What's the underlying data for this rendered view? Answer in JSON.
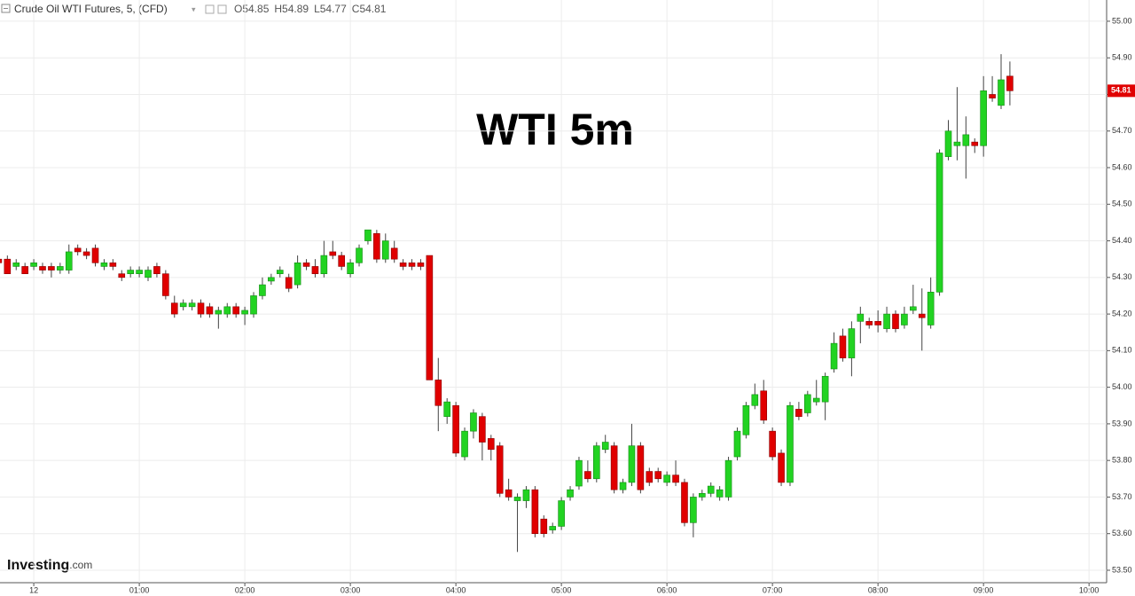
{
  "chart_data": {
    "type": "candlestick",
    "instrument": "Crude Oil WTI Futures, 5, (CFD)",
    "ohlc_labels": [
      "O54.85",
      "H54.89",
      "L54.77",
      "C54.81"
    ],
    "annotation": "WTI 5m",
    "watermark": [
      "Investing",
      ".com"
    ],
    "up_color": "#22d322",
    "down_color": "#e00000",
    "grid": true,
    "last_price": {
      "value": 54.81,
      "label": "54.81"
    },
    "xlim": [
      -19.2,
      610
    ],
    "xticks": [
      {
        "value": 0,
        "label": "12"
      },
      {
        "value": 60,
        "label": "01:00"
      },
      {
        "value": 120,
        "label": "02:00"
      },
      {
        "value": 180,
        "label": "03:00"
      },
      {
        "value": 240,
        "label": "04:00"
      },
      {
        "value": 300,
        "label": "05:00"
      },
      {
        "value": 360,
        "label": "06:00"
      },
      {
        "value": 420,
        "label": "07:00"
      },
      {
        "value": 480,
        "label": "08:00"
      },
      {
        "value": 540,
        "label": "09:00"
      },
      {
        "value": 600,
        "label": "10:00"
      }
    ],
    "ylim": [
      53.466,
      55.058
    ],
    "yticks": [
      {
        "value": 53.5,
        "label": "53.50"
      },
      {
        "value": 53.6,
        "label": "53.60"
      },
      {
        "value": 53.7,
        "label": "53.70"
      },
      {
        "value": 53.8,
        "label": "53.80"
      },
      {
        "value": 53.9,
        "label": "53.90"
      },
      {
        "value": 54.0,
        "label": "54.00"
      },
      {
        "value": 54.1,
        "label": "54.10"
      },
      {
        "value": 54.2,
        "label": "54.20"
      },
      {
        "value": 54.3,
        "label": "54.30"
      },
      {
        "value": 54.4,
        "label": "54.40"
      },
      {
        "value": 54.5,
        "label": "54.50"
      },
      {
        "value": 54.6,
        "label": "54.60"
      },
      {
        "value": 54.7,
        "label": "54.70"
      },
      {
        "value": 54.8,
        "label": "54.80"
      },
      {
        "value": 54.9,
        "label": "54.90"
      },
      {
        "value": 55.0,
        "label": "55.00"
      }
    ],
    "x": [
      -20,
      -15,
      -10,
      -5,
      0,
      5,
      10,
      15,
      20,
      25,
      30,
      35,
      40,
      45,
      50,
      55,
      60,
      65,
      70,
      75,
      80,
      85,
      90,
      95,
      100,
      105,
      110,
      115,
      120,
      125,
      130,
      135,
      140,
      145,
      150,
      155,
      160,
      165,
      170,
      175,
      180,
      185,
      190,
      195,
      200,
      205,
      210,
      215,
      220,
      225,
      230,
      235,
      240,
      245,
      250,
      255,
      260,
      265,
      270,
      275,
      280,
      285,
      290,
      295,
      300,
      305,
      310,
      315,
      320,
      325,
      330,
      335,
      340,
      345,
      350,
      355,
      360,
      365,
      370,
      375,
      380,
      385,
      390,
      395,
      400,
      405,
      410,
      415,
      420,
      425,
      430,
      435,
      440,
      445,
      450,
      455,
      460,
      465,
      470,
      475,
      480,
      485,
      490,
      495,
      500,
      505,
      510,
      515,
      520,
      525,
      530,
      535,
      540,
      545,
      550,
      555
    ],
    "open": [
      54.35,
      54.35,
      54.33,
      54.33,
      54.33,
      54.33,
      54.33,
      54.32,
      54.32,
      54.38,
      54.37,
      54.38,
      54.33,
      54.34,
      54.31,
      54.31,
      54.31,
      54.3,
      54.33,
      54.31,
      54.23,
      54.22,
      54.22,
      54.23,
      54.22,
      54.2,
      54.2,
      54.22,
      54.2,
      54.2,
      54.25,
      54.29,
      54.31,
      54.3,
      54.28,
      54.34,
      54.33,
      54.31,
      54.37,
      54.36,
      54.31,
      54.34,
      54.4,
      54.42,
      54.35,
      54.38,
      54.34,
      54.34,
      54.34,
      54.36,
      54.02,
      53.92,
      53.95,
      53.81,
      53.88,
      53.92,
      53.86,
      53.84,
      53.72,
      53.69,
      53.69,
      53.72,
      53.64,
      53.61,
      53.62,
      53.7,
      53.73,
      53.77,
      53.75,
      53.83,
      53.84,
      53.72,
      53.74,
      53.84,
      53.77,
      53.77,
      53.74,
      53.76,
      53.74,
      53.63,
      53.7,
      53.71,
      53.7,
      53.7,
      53.81,
      53.87,
      53.95,
      53.99,
      53.88,
      53.82,
      53.74,
      53.94,
      53.93,
      53.96,
      53.96,
      54.05,
      54.14,
      54.08,
      54.18,
      54.18,
      54.18,
      54.16,
      54.2,
      54.17,
      54.21,
      54.2,
      54.17,
      54.26,
      54.63,
      54.66,
      54.66,
      54.67,
      54.66,
      54.8,
      54.77,
      54.85
    ],
    "high": [
      54.36,
      54.36,
      54.35,
      54.34,
      54.35,
      54.34,
      54.34,
      54.34,
      54.39,
      54.39,
      54.38,
      54.39,
      54.35,
      54.35,
      54.32,
      54.33,
      54.33,
      54.33,
      54.34,
      54.32,
      54.25,
      54.24,
      54.24,
      54.24,
      54.23,
      54.22,
      54.23,
      54.23,
      54.22,
      54.26,
      54.3,
      54.31,
      54.33,
      54.31,
      54.36,
      54.35,
      54.35,
      54.4,
      54.4,
      54.37,
      54.35,
      54.39,
      54.43,
      54.43,
      54.42,
      54.4,
      54.35,
      54.35,
      54.35,
      54.36,
      54.08,
      53.97,
      53.96,
      53.89,
      53.94,
      53.93,
      53.87,
      53.85,
      53.75,
      53.71,
      53.73,
      53.73,
      53.65,
      53.63,
      53.7,
      53.73,
      53.81,
      53.8,
      53.85,
      53.87,
      53.85,
      53.75,
      53.9,
      53.85,
      53.78,
      53.78,
      53.77,
      53.8,
      53.75,
      53.71,
      53.72,
      53.74,
      53.73,
      53.81,
      53.89,
      53.96,
      54.01,
      54.02,
      53.89,
      53.83,
      53.96,
      53.96,
      53.99,
      54.02,
      54.04,
      54.15,
      54.16,
      54.18,
      54.22,
      54.19,
      54.21,
      54.22,
      54.21,
      54.22,
      54.28,
      54.27,
      54.3,
      54.65,
      54.73,
      54.82,
      54.74,
      54.68,
      54.85,
      54.85,
      54.91,
      54.89
    ],
    "low": [
      54.33,
      54.31,
      54.32,
      54.31,
      54.32,
      54.31,
      54.3,
      54.31,
      54.31,
      54.36,
      54.35,
      54.33,
      54.32,
      54.32,
      54.29,
      54.3,
      54.3,
      54.29,
      54.3,
      54.24,
      54.19,
      54.21,
      54.21,
      54.19,
      54.19,
      54.16,
      54.19,
      54.19,
      54.17,
      54.19,
      54.24,
      54.28,
      54.3,
      54.26,
      54.27,
      54.32,
      54.3,
      54.3,
      54.35,
      54.32,
      54.3,
      54.33,
      54.39,
      54.34,
      54.34,
      54.34,
      54.32,
      54.32,
      54.32,
      54.02,
      53.88,
      53.9,
      53.81,
      53.8,
      53.86,
      53.8,
      53.8,
      53.7,
      53.69,
      53.55,
      53.67,
      53.59,
      53.59,
      53.6,
      53.61,
      53.69,
      53.72,
      53.74,
      53.74,
      53.82,
      53.71,
      53.71,
      53.73,
      53.71,
      53.73,
      53.74,
      53.73,
      53.73,
      53.62,
      53.59,
      53.69,
      53.7,
      53.69,
      53.69,
      53.8,
      53.86,
      53.94,
      53.9,
      53.8,
      53.73,
      53.73,
      53.91,
      53.92,
      53.95,
      53.91,
      54.04,
      54.07,
      54.03,
      54.12,
      54.16,
      54.15,
      54.15,
      54.15,
      54.16,
      54.2,
      54.1,
      54.16,
      54.25,
      54.62,
      54.62,
      54.57,
      54.64,
      54.63,
      54.78,
      54.76,
      54.77
    ],
    "close": [
      54.34,
      54.31,
      54.34,
      54.31,
      54.34,
      54.32,
      54.32,
      54.33,
      54.37,
      54.37,
      54.36,
      54.34,
      54.34,
      54.33,
      54.3,
      54.32,
      54.32,
      54.32,
      54.31,
      54.25,
      54.2,
      54.23,
      54.23,
      54.2,
      54.2,
      54.21,
      54.22,
      54.2,
      54.21,
      54.25,
      54.28,
      54.3,
      54.32,
      54.27,
      54.34,
      54.33,
      54.31,
      54.36,
      54.36,
      54.33,
      54.34,
      54.38,
      54.43,
      54.35,
      54.4,
      54.35,
      54.33,
      54.33,
      54.33,
      54.02,
      53.95,
      53.96,
      53.82,
      53.88,
      53.93,
      53.85,
      53.83,
      53.71,
      53.7,
      53.7,
      53.72,
      53.6,
      53.6,
      53.62,
      53.69,
      53.72,
      53.8,
      53.75,
      53.84,
      53.85,
      53.72,
      53.74,
      53.84,
      53.72,
      53.74,
      53.75,
      53.76,
      53.74,
      53.63,
      53.7,
      53.71,
      53.73,
      53.72,
      53.8,
      53.88,
      53.95,
      53.98,
      53.91,
      53.81,
      53.74,
      53.95,
      53.92,
      53.98,
      53.97,
      54.03,
      54.12,
      54.08,
      54.16,
      54.2,
      54.17,
      54.17,
      54.2,
      54.16,
      54.2,
      54.22,
      54.19,
      54.26,
      54.64,
      54.7,
      54.67,
      54.69,
      54.66,
      54.81,
      54.79,
      54.84,
      54.81
    ]
  }
}
